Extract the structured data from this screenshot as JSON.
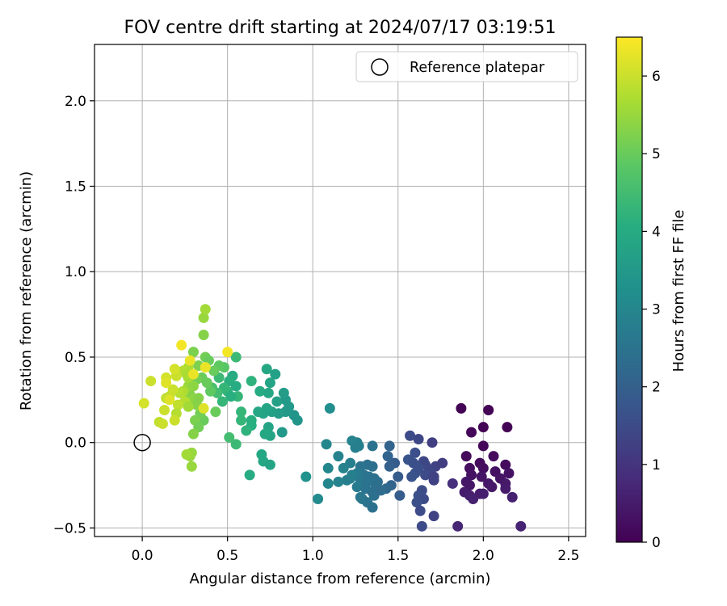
{
  "chart_data": {
    "type": "scatter",
    "title": "FOV centre drift starting at 2024/07/17 03:19:51",
    "xlabel": "Angular distance from reference (arcmin)",
    "ylabel": "Rotation from reference (arcmin)",
    "xlim": [
      -0.28,
      2.6
    ],
    "ylim": [
      -0.55,
      2.33
    ],
    "xticks": [
      0.0,
      0.5,
      1.0,
      1.5,
      2.0,
      2.5
    ],
    "xtick_labels": [
      "0.0",
      "0.5",
      "1.0",
      "1.5",
      "2.0",
      "2.5"
    ],
    "yticks": [
      -0.5,
      0.0,
      0.5,
      1.0,
      1.5,
      2.0
    ],
    "ytick_labels": [
      "−0.5",
      "0.0",
      "0.5",
      "1.0",
      "1.5",
      "2.0"
    ],
    "grid": true,
    "legend": {
      "position": "top-right",
      "entries": [
        "Reference platepar"
      ]
    },
    "reference_point": {
      "name": "Reference platepar",
      "x": 0.0,
      "y": 0.0
    },
    "colorbar": {
      "label": "Hours from first FF file",
      "colormap": "viridis",
      "range": [
        0,
        6.5
      ],
      "ticks": [
        0,
        1,
        2,
        3,
        4,
        5,
        6
      ],
      "tick_labels": [
        "0",
        "1",
        "2",
        "3",
        "4",
        "5",
        "6"
      ]
    },
    "points": [
      {
        "x": 1.87,
        "y": 0.2,
        "h": 0.05
      },
      {
        "x": 2.03,
        "y": 0.19,
        "h": 0.05
      },
      {
        "x": 2.14,
        "y": 0.09,
        "h": 0.05
      },
      {
        "x": 2.0,
        "y": 0.09,
        "h": 0.05
      },
      {
        "x": 1.93,
        "y": 0.06,
        "h": 0.1
      },
      {
        "x": 2.0,
        "y": -0.02,
        "h": 0.1
      },
      {
        "x": 1.9,
        "y": -0.08,
        "h": 0.15
      },
      {
        "x": 2.06,
        "y": -0.08,
        "h": 0.2
      },
      {
        "x": 1.98,
        "y": -0.12,
        "h": 0.2
      },
      {
        "x": 2.13,
        "y": -0.13,
        "h": 0.2
      },
      {
        "x": 1.92,
        "y": -0.15,
        "h": 0.25
      },
      {
        "x": 2.0,
        "y": -0.15,
        "h": 0.25
      },
      {
        "x": 2.07,
        "y": -0.17,
        "h": 0.3
      },
      {
        "x": 2.15,
        "y": -0.18,
        "h": 0.3
      },
      {
        "x": 1.93,
        "y": -0.19,
        "h": 0.3
      },
      {
        "x": 1.99,
        "y": -0.2,
        "h": 0.35
      },
      {
        "x": 2.1,
        "y": -0.21,
        "h": 0.35
      },
      {
        "x": 1.9,
        "y": -0.23,
        "h": 0.4
      },
      {
        "x": 1.92,
        "y": -0.25,
        "h": 0.4
      },
      {
        "x": 2.03,
        "y": -0.24,
        "h": 0.4
      },
      {
        "x": 2.13,
        "y": -0.24,
        "h": 0.45
      },
      {
        "x": 2.05,
        "y": -0.26,
        "h": 0.45
      },
      {
        "x": 2.13,
        "y": -0.27,
        "h": 0.5
      },
      {
        "x": 1.89,
        "y": -0.29,
        "h": 0.5
      },
      {
        "x": 1.98,
        "y": -0.3,
        "h": 0.5
      },
      {
        "x": 2.0,
        "y": -0.3,
        "h": 0.55
      },
      {
        "x": 1.92,
        "y": -0.31,
        "h": 0.55
      },
      {
        "x": 2.17,
        "y": -0.32,
        "h": 0.6
      },
      {
        "x": 1.94,
        "y": -0.33,
        "h": 0.6
      },
      {
        "x": 2.22,
        "y": -0.49,
        "h": 0.65
      },
      {
        "x": 1.85,
        "y": -0.49,
        "h": 0.7
      },
      {
        "x": 1.82,
        "y": -0.24,
        "h": 0.9
      },
      {
        "x": 1.57,
        "y": 0.04,
        "h": 1.5
      },
      {
        "x": 1.62,
        "y": 0.02,
        "h": 1.4
      },
      {
        "x": 1.7,
        "y": 0.0,
        "h": 1.2
      },
      {
        "x": 1.6,
        "y": -0.06,
        "h": 1.6
      },
      {
        "x": 1.65,
        "y": -0.11,
        "h": 1.4
      },
      {
        "x": 1.56,
        "y": -0.1,
        "h": 1.7
      },
      {
        "x": 1.59,
        "y": -0.12,
        "h": 1.6
      },
      {
        "x": 1.66,
        "y": -0.13,
        "h": 1.4
      },
      {
        "x": 1.72,
        "y": -0.14,
        "h": 1.3
      },
      {
        "x": 1.76,
        "y": -0.12,
        "h": 1.2
      },
      {
        "x": 1.62,
        "y": -0.15,
        "h": 1.6
      },
      {
        "x": 1.69,
        "y": -0.17,
        "h": 1.4
      },
      {
        "x": 1.6,
        "y": -0.18,
        "h": 1.6
      },
      {
        "x": 1.66,
        "y": -0.19,
        "h": 1.5
      },
      {
        "x": 1.71,
        "y": -0.2,
        "h": 1.3
      },
      {
        "x": 1.58,
        "y": -0.2,
        "h": 1.7
      },
      {
        "x": 1.71,
        "y": -0.22,
        "h": 1.3
      },
      {
        "x": 1.64,
        "y": -0.28,
        "h": 1.5
      },
      {
        "x": 1.62,
        "y": -0.31,
        "h": 1.6
      },
      {
        "x": 1.65,
        "y": -0.33,
        "h": 1.5
      },
      {
        "x": 1.61,
        "y": -0.35,
        "h": 1.6
      },
      {
        "x": 1.63,
        "y": -0.4,
        "h": 1.5
      },
      {
        "x": 1.71,
        "y": -0.43,
        "h": 1.3
      },
      {
        "x": 1.64,
        "y": -0.49,
        "h": 1.5
      },
      {
        "x": 1.48,
        "y": -0.12,
        "h": 1.9
      },
      {
        "x": 1.45,
        "y": -0.14,
        "h": 2.0
      },
      {
        "x": 1.5,
        "y": -0.2,
        "h": 1.9
      },
      {
        "x": 1.45,
        "y": -0.02,
        "h": 2.1
      },
      {
        "x": 1.44,
        "y": -0.08,
        "h": 2.1
      },
      {
        "x": 1.46,
        "y": -0.25,
        "h": 2.1
      },
      {
        "x": 1.43,
        "y": -0.27,
        "h": 2.2
      },
      {
        "x": 1.51,
        "y": -0.31,
        "h": 1.9
      },
      {
        "x": 1.38,
        "y": -0.23,
        "h": 2.3
      },
      {
        "x": 1.35,
        "y": -0.02,
        "h": 2.5
      },
      {
        "x": 1.32,
        "y": -0.13,
        "h": 2.4
      },
      {
        "x": 1.35,
        "y": -0.14,
        "h": 2.4
      },
      {
        "x": 1.28,
        "y": -0.14,
        "h": 2.5
      },
      {
        "x": 1.3,
        "y": -0.19,
        "h": 2.5
      },
      {
        "x": 1.33,
        "y": -0.2,
        "h": 2.5
      },
      {
        "x": 1.36,
        "y": -0.21,
        "h": 2.4
      },
      {
        "x": 1.28,
        "y": -0.22,
        "h": 2.6
      },
      {
        "x": 1.32,
        "y": -0.23,
        "h": 2.5
      },
      {
        "x": 1.37,
        "y": -0.25,
        "h": 2.4
      },
      {
        "x": 1.26,
        "y": -0.26,
        "h": 2.7
      },
      {
        "x": 1.31,
        "y": -0.27,
        "h": 2.5
      },
      {
        "x": 1.35,
        "y": -0.29,
        "h": 2.4
      },
      {
        "x": 1.36,
        "y": -0.31,
        "h": 2.4
      },
      {
        "x": 1.29,
        "y": -0.33,
        "h": 2.6
      },
      {
        "x": 1.32,
        "y": -0.35,
        "h": 2.5
      },
      {
        "x": 1.35,
        "y": -0.38,
        "h": 2.4
      },
      {
        "x": 1.28,
        "y": -0.32,
        "h": 2.6
      },
      {
        "x": 1.4,
        "y": -0.28,
        "h": 2.3
      },
      {
        "x": 1.26,
        "y": 0.0,
        "h": 2.8
      },
      {
        "x": 1.23,
        "y": 0.01,
        "h": 2.9
      },
      {
        "x": 1.27,
        "y": -0.02,
        "h": 2.8
      },
      {
        "x": 1.25,
        "y": -0.03,
        "h": 2.8
      },
      {
        "x": 1.1,
        "y": 0.2,
        "h": 3.2
      },
      {
        "x": 1.08,
        "y": -0.01,
        "h": 3.0
      },
      {
        "x": 1.15,
        "y": -0.08,
        "h": 2.9
      },
      {
        "x": 1.22,
        "y": -0.12,
        "h": 2.8
      },
      {
        "x": 1.09,
        "y": -0.15,
        "h": 3.0
      },
      {
        "x": 1.18,
        "y": -0.15,
        "h": 2.9
      },
      {
        "x": 1.26,
        "y": -0.18,
        "h": 2.7
      },
      {
        "x": 1.23,
        "y": -0.19,
        "h": 2.8
      },
      {
        "x": 1.22,
        "y": -0.21,
        "h": 2.8
      },
      {
        "x": 1.2,
        "y": -0.22,
        "h": 2.8
      },
      {
        "x": 1.15,
        "y": -0.23,
        "h": 2.9
      },
      {
        "x": 1.09,
        "y": -0.24,
        "h": 3.0
      },
      {
        "x": 1.03,
        "y": -0.33,
        "h": 3.1
      },
      {
        "x": 0.96,
        "y": -0.2,
        "h": 3.3
      },
      {
        "x": 0.91,
        "y": 0.13,
        "h": 3.4
      },
      {
        "x": 0.89,
        "y": 0.16,
        "h": 3.4
      },
      {
        "x": 0.84,
        "y": 0.18,
        "h": 3.5
      },
      {
        "x": 0.8,
        "y": 0.17,
        "h": 3.6
      },
      {
        "x": 0.82,
        "y": 0.06,
        "h": 3.5
      },
      {
        "x": 0.86,
        "y": 0.21,
        "h": 3.5
      },
      {
        "x": 0.84,
        "y": 0.25,
        "h": 3.5
      },
      {
        "x": 0.83,
        "y": 0.29,
        "h": 3.6
      },
      {
        "x": 0.79,
        "y": 0.24,
        "h": 3.7
      },
      {
        "x": 0.76,
        "y": 0.18,
        "h": 3.7
      },
      {
        "x": 0.73,
        "y": 0.2,
        "h": 3.8
      },
      {
        "x": 0.71,
        "y": 0.17,
        "h": 3.8
      },
      {
        "x": 0.74,
        "y": 0.09,
        "h": 3.8
      },
      {
        "x": 0.75,
        "y": 0.04,
        "h": 3.8
      },
      {
        "x": 0.72,
        "y": 0.05,
        "h": 3.9
      },
      {
        "x": 0.68,
        "y": 0.18,
        "h": 3.9
      },
      {
        "x": 0.69,
        "y": 0.3,
        "h": 4.0
      },
      {
        "x": 0.74,
        "y": 0.29,
        "h": 3.9
      },
      {
        "x": 0.75,
        "y": 0.35,
        "h": 3.8
      },
      {
        "x": 0.73,
        "y": 0.43,
        "h": 3.9
      },
      {
        "x": 0.78,
        "y": 0.4,
        "h": 3.7
      },
      {
        "x": 0.7,
        "y": -0.07,
        "h": 3.9
      },
      {
        "x": 0.71,
        "y": -0.11,
        "h": 3.9
      },
      {
        "x": 0.75,
        "y": -0.13,
        "h": 3.8
      },
      {
        "x": 0.63,
        "y": -0.19,
        "h": 4.0
      },
      {
        "x": 0.64,
        "y": 0.1,
        "h": 4.1
      },
      {
        "x": 0.64,
        "y": 0.13,
        "h": 4.1
      },
      {
        "x": 0.64,
        "y": 0.36,
        "h": 4.2
      },
      {
        "x": 0.61,
        "y": 0.07,
        "h": 4.2
      },
      {
        "x": 0.58,
        "y": 0.13,
        "h": 4.3
      },
      {
        "x": 0.58,
        "y": 0.18,
        "h": 4.3
      },
      {
        "x": 0.56,
        "y": 0.27,
        "h": 4.3
      },
      {
        "x": 0.55,
        "y": 0.5,
        "h": 4.4
      },
      {
        "x": 0.55,
        "y": -0.01,
        "h": 4.4
      },
      {
        "x": 0.51,
        "y": 0.03,
        "h": 4.5
      },
      {
        "x": 0.53,
        "y": 0.39,
        "h": 4.0
      },
      {
        "x": 0.51,
        "y": 0.36,
        "h": 4.1
      },
      {
        "x": 0.55,
        "y": 0.33,
        "h": 4.0
      },
      {
        "x": 0.5,
        "y": 0.3,
        "h": 4.2
      },
      {
        "x": 0.52,
        "y": 0.27,
        "h": 4.1
      },
      {
        "x": 0.48,
        "y": 0.32,
        "h": 4.3
      },
      {
        "x": 0.45,
        "y": 0.38,
        "h": 4.4
      },
      {
        "x": 0.44,
        "y": 0.29,
        "h": 4.5
      },
      {
        "x": 0.47,
        "y": 0.24,
        "h": 4.3
      },
      {
        "x": 0.41,
        "y": 0.32,
        "h": 4.6
      },
      {
        "x": 0.48,
        "y": 0.44,
        "h": 4.8
      },
      {
        "x": 0.45,
        "y": 0.45,
        "h": 4.9
      },
      {
        "x": 0.42,
        "y": 0.42,
        "h": 5.0
      },
      {
        "x": 0.43,
        "y": 0.18,
        "h": 5.0
      },
      {
        "x": 0.4,
        "y": 0.3,
        "h": 4.9
      },
      {
        "x": 0.38,
        "y": 0.35,
        "h": 5.0
      },
      {
        "x": 0.35,
        "y": 0.38,
        "h": 5.0
      },
      {
        "x": 0.32,
        "y": 0.37,
        "h": 5.1
      },
      {
        "x": 0.37,
        "y": 0.5,
        "h": 5.1
      },
      {
        "x": 0.39,
        "y": 0.48,
        "h": 5.0
      },
      {
        "x": 0.33,
        "y": 0.45,
        "h": 5.2
      },
      {
        "x": 0.3,
        "y": 0.53,
        "h": 5.2
      },
      {
        "x": 0.36,
        "y": 0.63,
        "h": 5.3
      },
      {
        "x": 0.36,
        "y": 0.73,
        "h": 5.5
      },
      {
        "x": 0.37,
        "y": 0.78,
        "h": 5.6
      },
      {
        "x": 0.36,
        "y": 0.13,
        "h": 5.0
      },
      {
        "x": 0.34,
        "y": 0.17,
        "h": 5.1
      },
      {
        "x": 0.31,
        "y": 0.13,
        "h": 5.2
      },
      {
        "x": 0.33,
        "y": 0.09,
        "h": 5.1
      },
      {
        "x": 0.3,
        "y": 0.05,
        "h": 5.3
      },
      {
        "x": 0.29,
        "y": -0.06,
        "h": 5.5
      },
      {
        "x": 0.28,
        "y": -0.08,
        "h": 5.5
      },
      {
        "x": 0.26,
        "y": -0.07,
        "h": 5.6
      },
      {
        "x": 0.29,
        "y": -0.14,
        "h": 5.5
      },
      {
        "x": 0.28,
        "y": 0.28,
        "h": 5.3
      },
      {
        "x": 0.3,
        "y": 0.25,
        "h": 5.4
      },
      {
        "x": 0.32,
        "y": 0.22,
        "h": 5.3
      },
      {
        "x": 0.33,
        "y": 0.26,
        "h": 5.3
      },
      {
        "x": 0.27,
        "y": 0.33,
        "h": 5.5
      },
      {
        "x": 0.3,
        "y": 0.33,
        "h": 5.4
      },
      {
        "x": 0.27,
        "y": 0.38,
        "h": 5.6
      },
      {
        "x": 0.27,
        "y": 0.44,
        "h": 5.7
      },
      {
        "x": 0.24,
        "y": 0.42,
        "h": 5.8
      },
      {
        "x": 0.26,
        "y": 0.4,
        "h": 5.7
      },
      {
        "x": 0.24,
        "y": 0.3,
        "h": 5.7
      },
      {
        "x": 0.25,
        "y": 0.24,
        "h": 5.8
      },
      {
        "x": 0.27,
        "y": 0.21,
        "h": 5.6
      },
      {
        "x": 0.22,
        "y": 0.29,
        "h": 5.8
      },
      {
        "x": 0.21,
        "y": 0.22,
        "h": 5.9
      },
      {
        "x": 0.2,
        "y": 0.17,
        "h": 5.8
      },
      {
        "x": 0.19,
        "y": 0.13,
        "h": 6.0
      },
      {
        "x": 0.16,
        "y": 0.27,
        "h": 5.9
      },
      {
        "x": 0.14,
        "y": 0.26,
        "h": 5.9
      },
      {
        "x": 0.18,
        "y": 0.31,
        "h": 6.0
      },
      {
        "x": 0.2,
        "y": 0.39,
        "h": 6.0
      },
      {
        "x": 0.19,
        "y": 0.43,
        "h": 6.1
      },
      {
        "x": 0.14,
        "y": 0.38,
        "h": 6.1
      },
      {
        "x": 0.14,
        "y": 0.35,
        "h": 6.2
      },
      {
        "x": 0.13,
        "y": 0.19,
        "h": 6.0
      },
      {
        "x": 0.1,
        "y": 0.12,
        "h": 5.9
      },
      {
        "x": 0.12,
        "y": 0.11,
        "h": 6.0
      },
      {
        "x": 0.05,
        "y": 0.36,
        "h": 6.0
      },
      {
        "x": 0.01,
        "y": 0.23,
        "h": 6.1
      },
      {
        "x": 0.16,
        "y": 0.25,
        "h": 6.2
      },
      {
        "x": 0.28,
        "y": 0.48,
        "h": 6.3
      },
      {
        "x": 0.23,
        "y": 0.57,
        "h": 6.4
      },
      {
        "x": 0.5,
        "y": 0.53,
        "h": 6.4
      },
      {
        "x": 0.37,
        "y": 0.44,
        "h": 6.3
      },
      {
        "x": 0.36,
        "y": 0.2,
        "h": 6.2
      },
      {
        "x": 0.3,
        "y": 0.4,
        "h": 6.3
      }
    ]
  }
}
